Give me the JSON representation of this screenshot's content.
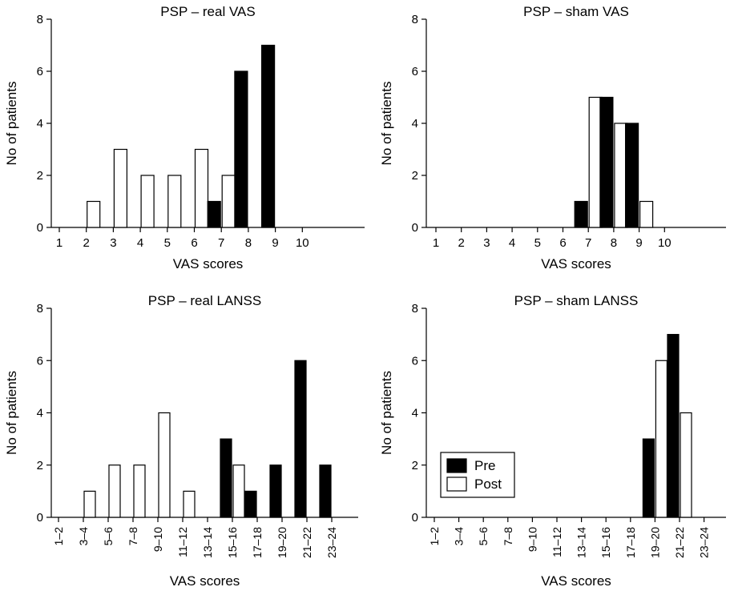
{
  "chart_data": [
    {
      "type": "bar",
      "title": "PSP – real VAS",
      "xlabel": "VAS scores",
      "ylabel": "No of patients",
      "ylim": [
        0,
        8
      ],
      "yticks": [
        0,
        2,
        4,
        6,
        8
      ],
      "categories": [
        "1",
        "2",
        "3",
        "4",
        "5",
        "6",
        "7",
        "8",
        "9",
        "10"
      ],
      "series": [
        {
          "name": "Pre",
          "color": "#000000",
          "values": [
            0,
            0,
            0,
            0,
            0,
            0,
            1,
            6,
            7,
            0
          ]
        },
        {
          "name": "Post",
          "color": "#ffffff",
          "values": [
            0,
            1,
            3,
            2,
            2,
            3,
            2,
            0,
            0,
            0
          ]
        }
      ]
    },
    {
      "type": "bar",
      "title": "PSP – sham VAS",
      "xlabel": "VAS scores",
      "ylabel": "No of patients",
      "ylim": [
        0,
        8
      ],
      "yticks": [
        0,
        2,
        4,
        6,
        8
      ],
      "categories": [
        "1",
        "2",
        "3",
        "4",
        "5",
        "6",
        "7",
        "8",
        "9",
        "10"
      ],
      "series": [
        {
          "name": "Pre",
          "color": "#000000",
          "values": [
            0,
            0,
            0,
            0,
            0,
            0,
            1,
            5,
            4,
            0
          ]
        },
        {
          "name": "Post",
          "color": "#ffffff",
          "values": [
            0,
            0,
            0,
            0,
            0,
            0,
            5,
            4,
            1,
            0
          ]
        }
      ]
    },
    {
      "type": "bar",
      "title": "PSP – real LANSS",
      "xlabel": "VAS scores",
      "ylabel": "No of patients",
      "ylim": [
        0,
        8
      ],
      "yticks": [
        0,
        2,
        4,
        6,
        8
      ],
      "categories": [
        "1–2",
        "3–4",
        "5–6",
        "7–8",
        "9–10",
        "11–12",
        "13–14",
        "15–16",
        "17–18",
        "19–20",
        "21–22",
        "23–24"
      ],
      "series": [
        {
          "name": "Pre",
          "color": "#000000",
          "values": [
            0,
            0,
            0,
            0,
            0,
            0,
            0,
            3,
            1,
            2,
            6,
            2
          ]
        },
        {
          "name": "Post",
          "color": "#ffffff",
          "values": [
            0,
            1,
            2,
            2,
            4,
            1,
            0,
            2,
            0,
            0,
            0,
            0
          ]
        }
      ]
    },
    {
      "type": "bar",
      "title": "PSP – sham LANSS",
      "xlabel": "VAS scores",
      "ylabel": "No of patients",
      "ylim": [
        0,
        8
      ],
      "yticks": [
        0,
        2,
        4,
        6,
        8
      ],
      "categories": [
        "1–2",
        "3–4",
        "5–6",
        "7–8",
        "9–10",
        "11–12",
        "13–14",
        "15–16",
        "17–18",
        "19–20",
        "21–22",
        "23–24"
      ],
      "series": [
        {
          "name": "Pre",
          "color": "#000000",
          "values": [
            0,
            0,
            0,
            0,
            0,
            0,
            0,
            0,
            0,
            3,
            7,
            0
          ]
        },
        {
          "name": "Post",
          "color": "#ffffff",
          "values": [
            0,
            0,
            0,
            0,
            0,
            0,
            0,
            0,
            0,
            6,
            4,
            0
          ]
        }
      ],
      "legend": {
        "placement": "lower-left",
        "entries": [
          "Pre",
          "Post"
        ]
      }
    }
  ]
}
